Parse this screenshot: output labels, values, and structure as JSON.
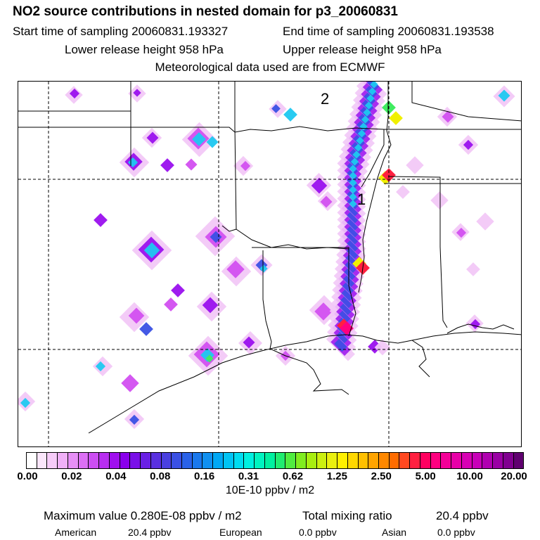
{
  "header": {
    "title": "NO2 source contributions in nested domain for p3_20060831",
    "start_sampling": "Start time of sampling 20060831.193327",
    "end_sampling": "End time of sampling 20060831.193538",
    "lower_release": "Lower release height  958 hPa",
    "upper_release": "Upper release height  958 hPa",
    "met_data": "Meteorological data used are from ECMWF"
  },
  "map": {
    "labels": [
      "1",
      "2"
    ]
  },
  "chart_data": {
    "type": "heatmap",
    "title": "NO2 source contributions in nested domain for p3_20060831",
    "colorbar": {
      "tick_labels": [
        "0.00",
        "0.02",
        "0.04",
        "0.08",
        "0.16",
        "0.31",
        "0.62",
        "1.25",
        "2.50",
        "5.00",
        "10.00",
        "20.00"
      ],
      "units": "10E-10 ppbv / m2",
      "colors": [
        "#ffffff",
        "#fbe6fb",
        "#f7ccf9",
        "#f0b0f8",
        "#e68ff6",
        "#dc6ff4",
        "#cc4ef2",
        "#b82ef0",
        "#a010ee",
        "#8a00ec",
        "#7a10e8",
        "#6a20e4",
        "#5a30e0",
        "#4a40e0",
        "#3a50e4",
        "#2a62e8",
        "#1a78ec",
        "#1090f0",
        "#00a8f4",
        "#00c4f4",
        "#00dcf0",
        "#00f0e0",
        "#00f4c0",
        "#00f0a0",
        "#20ec70",
        "#50ec40",
        "#80ec20",
        "#a8ee10",
        "#ccf010",
        "#eaf010",
        "#fff000",
        "#ffd800",
        "#ffc000",
        "#ffa400",
        "#ff8800",
        "#ff6c00",
        "#ff4820",
        "#ff2040",
        "#ff0060",
        "#ff0080",
        "#f40098",
        "#e800a8",
        "#d800b4",
        "#c800b8",
        "#b000b0",
        "#9a00a4",
        "#800090",
        "#600070"
      ]
    }
  },
  "footer": {
    "max_value": "Maximum value  0.280E-08 ppbv / m2",
    "total_label": "Total mixing ratio",
    "total_value": "20.4 ppbv",
    "american_label": "American",
    "american_value": "20.4 ppbv",
    "european_label": "European",
    "european_value": "0.0 ppbv",
    "asian_label": "Asian",
    "asian_value": "0.0 ppbv"
  }
}
